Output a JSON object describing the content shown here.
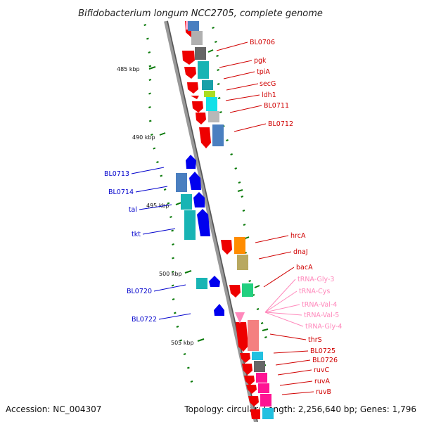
{
  "title": "Bifidobacterium longum NCC2705, complete genome",
  "footer": {
    "accession": "Accession: NC_004307",
    "summary": "Topology: circular; Length: 2,256,640 bp; Genes: 1,796"
  },
  "scale": [
    "485 kbp",
    "490 kbp",
    "495 kbp",
    "500 kbp",
    "505 kbp"
  ],
  "colors": {
    "forward_strand": "#ff0000",
    "reverse_strand": "#0000ff",
    "trna": "#ff88bb",
    "backbone": "#888888",
    "tick": "#0a7a0a"
  },
  "forward_labels": [
    "BL0706",
    "pgk",
    "tpiA",
    "secG",
    "ldh1",
    "BL0711",
    "BL0712",
    "hrcA",
    "dnaJ",
    "bacA",
    "thrS",
    "BL0725",
    "BL0726",
    "ruvC",
    "ruvA",
    "ruvB"
  ],
  "trna_labels": [
    "tRNA-Gly-3",
    "tRNA-Cys",
    "tRNA-Val-4",
    "tRNA-Val-5",
    "tRNA-Gly-4"
  ],
  "reverse_labels": [
    "BL0713",
    "BL0714",
    "tal",
    "tkt",
    "BL0720",
    "BL0722"
  ]
}
